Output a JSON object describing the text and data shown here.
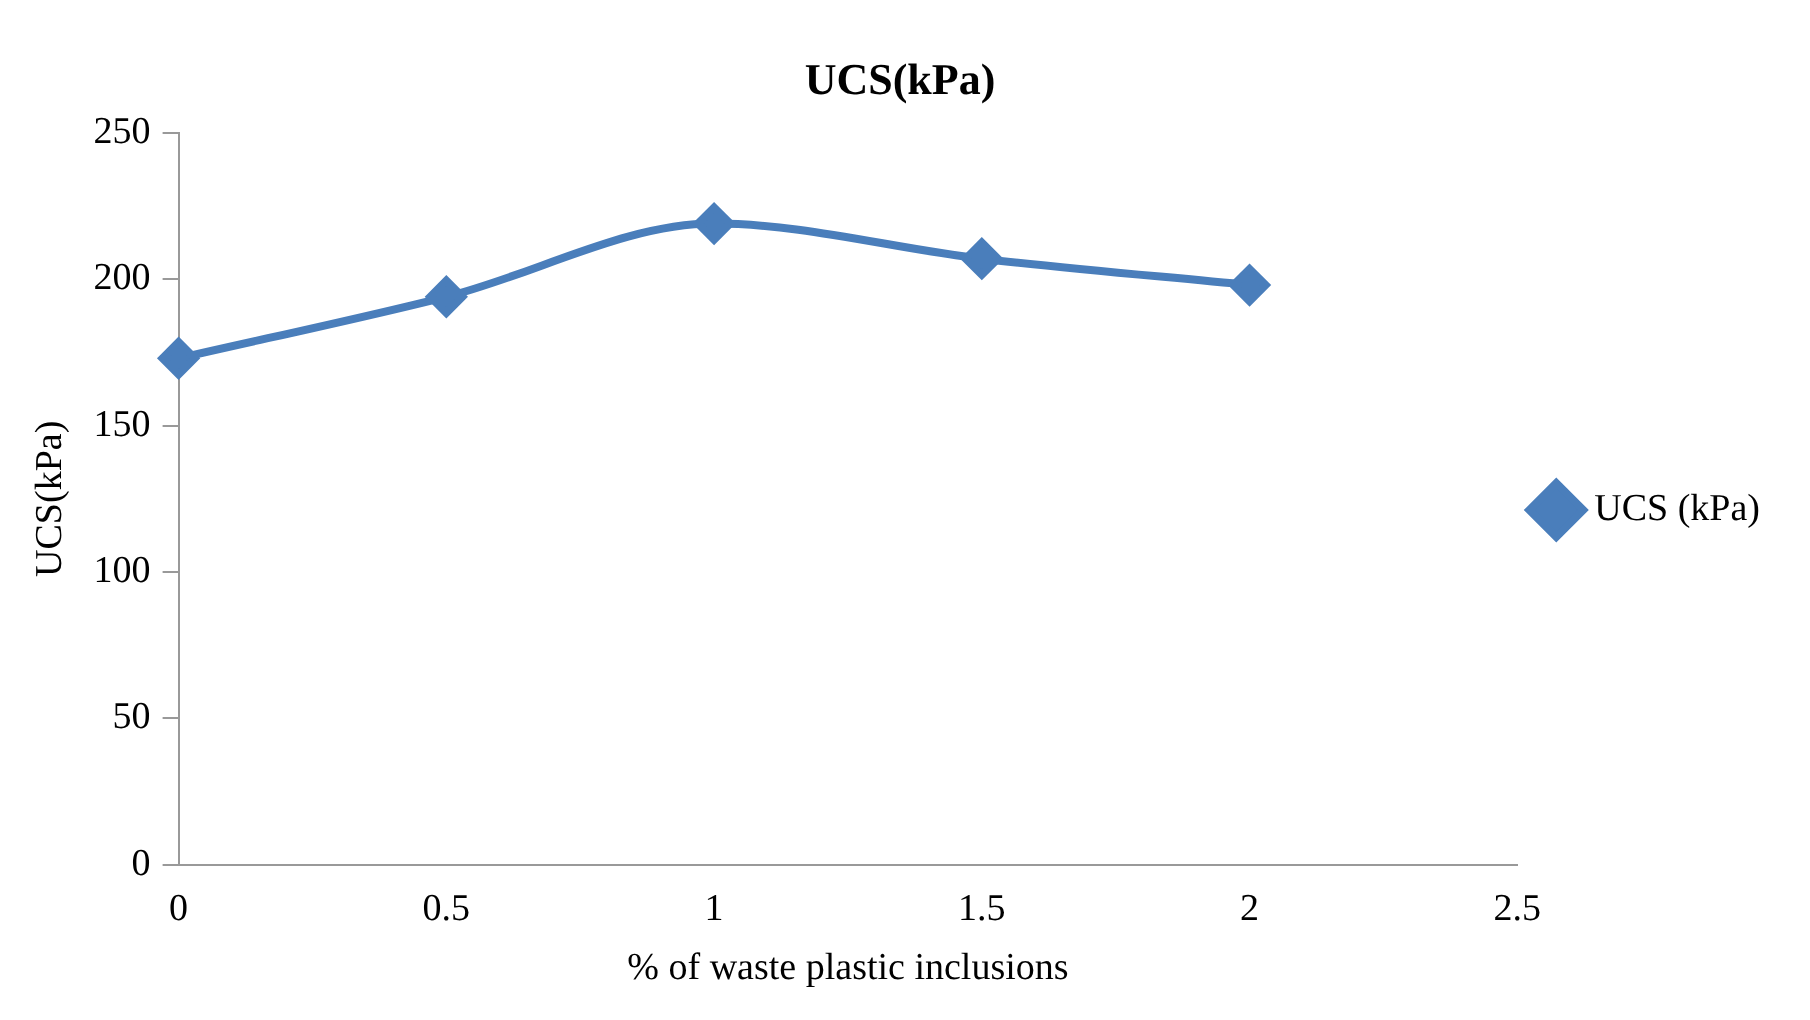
{
  "chart_data": {
    "type": "line",
    "title": "UCS(kPa)",
    "xlabel": "% of waste plastic inclusions",
    "ylabel": "UCS(kPa)",
    "x": [
      0,
      0.5,
      1,
      1.5,
      2
    ],
    "series": [
      {
        "name": "UCS (kPa)",
        "color": "#4a7ebb",
        "values": [
          173,
          194,
          219,
          207,
          198
        ]
      }
    ],
    "xlim": [
      0,
      2.5
    ],
    "xticks": [
      0,
      0.5,
      1,
      1.5,
      2,
      2.5
    ],
    "ylim": [
      0,
      250
    ],
    "yticks": [
      0,
      50,
      100,
      150,
      200,
      250
    ],
    "grid": false,
    "legend": "right",
    "marker": "diamond",
    "line_style": "solid"
  }
}
